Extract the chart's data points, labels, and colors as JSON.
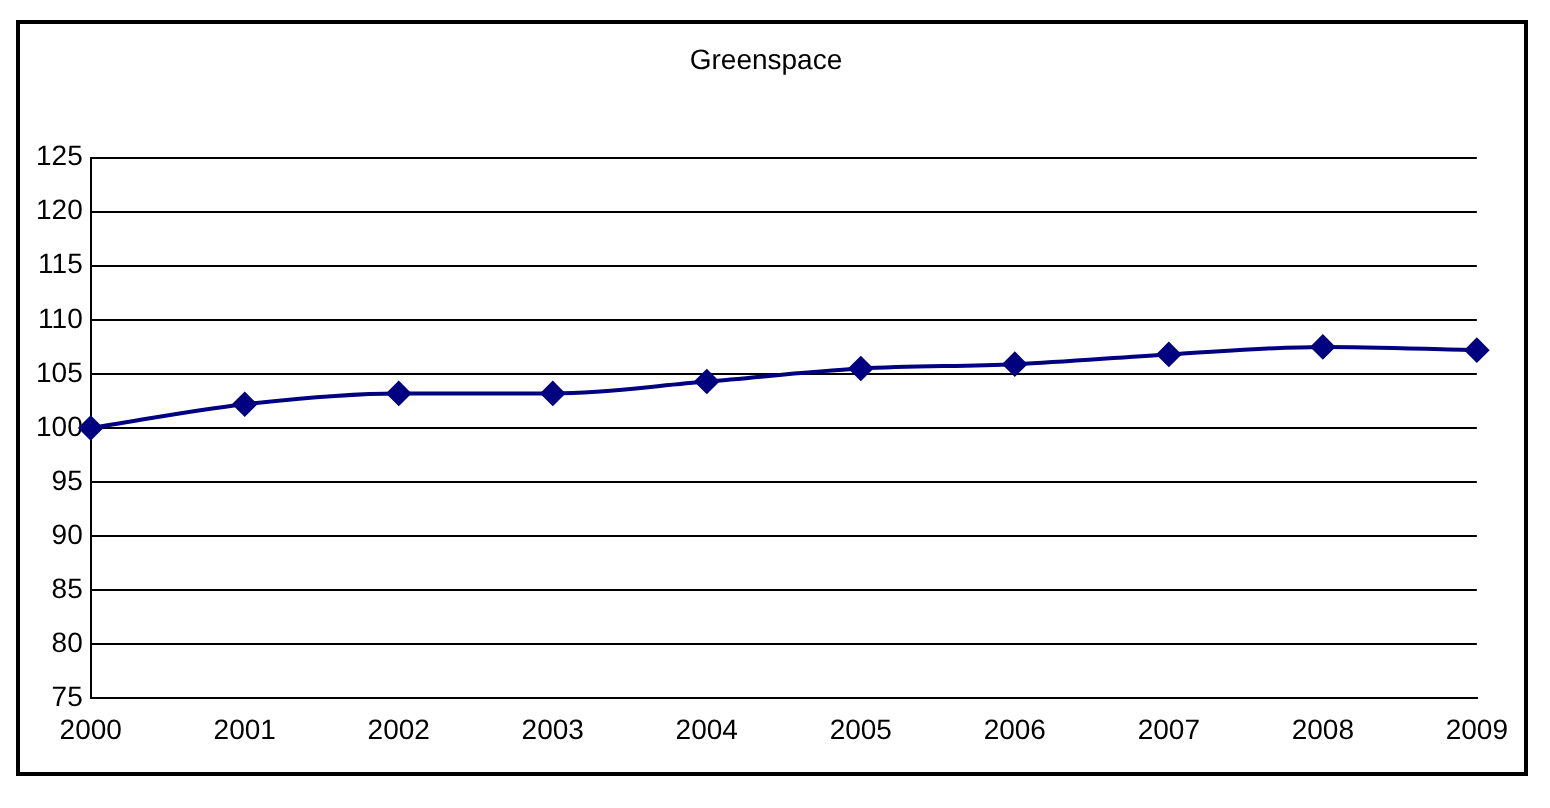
{
  "chart_data": {
    "type": "line",
    "title": "Greenspace",
    "categories": [
      "2000",
      "2001",
      "2002",
      "2003",
      "2004",
      "2005",
      "2006",
      "2007",
      "2008",
      "2009"
    ],
    "series": [
      {
        "color": "#000080",
        "values": [
          100,
          102.2,
          103.2,
          103.2,
          104.3,
          105.5,
          105.9,
          106.8,
          107.5,
          107.2
        ]
      }
    ],
    "ylim": [
      75,
      125
    ],
    "yticks": [
      75,
      80,
      85,
      90,
      95,
      100,
      105,
      110,
      115,
      120,
      125
    ],
    "grid": "y",
    "legend": false,
    "marker": "diamond",
    "line_style": "solid"
  }
}
